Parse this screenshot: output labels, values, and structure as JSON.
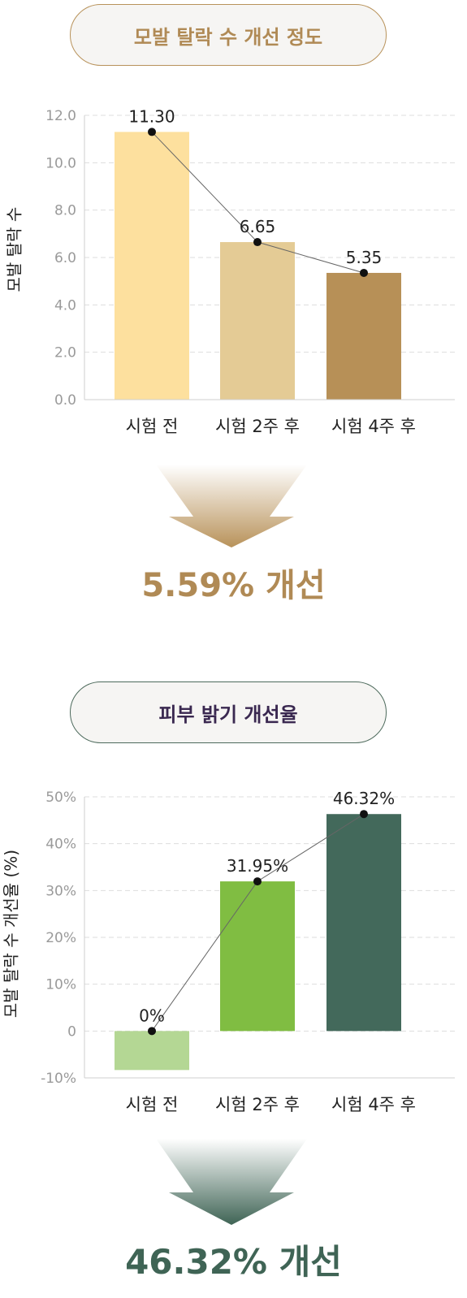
{
  "sections": [
    {
      "title": "모발 탈락 수 개선 정도",
      "result": "5.59% 개선",
      "arrow_color": "#b8925a"
    },
    {
      "title": "피부 밝기 개선율",
      "result": "46.32% 개선",
      "arrow_color": "#3f6455"
    }
  ],
  "chart_data": [
    {
      "type": "bar",
      "ylabel": "모발 탈락 수",
      "categories": [
        "시험 전",
        "시험 2주 후",
        "시험 4주 후"
      ],
      "values": [
        11.3,
        6.65,
        5.35
      ],
      "value_labels": [
        "11.30",
        "6.65",
        "5.35"
      ],
      "ylim": [
        0,
        12
      ],
      "yticks": [
        "0.0",
        "2.0",
        "4.0",
        "6.0",
        "8.0",
        "10.0",
        "12.0"
      ],
      "colors": [
        "#fde09e",
        "#e4cb95",
        "#b79057"
      ],
      "line_overlay": true,
      "grid": true
    },
    {
      "type": "bar",
      "ylabel": "모발 탈락 수 개선율 (%)",
      "categories": [
        "시험 전",
        "시험 2주 후",
        "시험 4주 후"
      ],
      "values": [
        0,
        31.95,
        46.32
      ],
      "value_labels": [
        "0%",
        "31.95%",
        "46.32%"
      ],
      "ylim": [
        -10,
        50
      ],
      "yticks": [
        "-10%",
        "0",
        "10%",
        "20%",
        "30%",
        "40%",
        "50%"
      ],
      "colors": [
        "#b4d794",
        "#80bd42",
        "#43695b"
      ],
      "line_overlay": true,
      "grid": true
    }
  ]
}
